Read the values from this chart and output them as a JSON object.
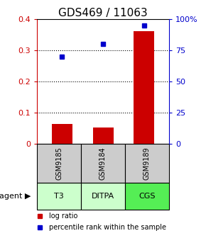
{
  "title": "GDS469 / 11063",
  "categories": [
    "GSM9185",
    "GSM9184",
    "GSM9189"
  ],
  "agents": [
    "T3",
    "DITPA",
    "CGS"
  ],
  "log_ratio": [
    0.063,
    0.052,
    0.36
  ],
  "percentile_rank": [
    0.7,
    0.8,
    0.95
  ],
  "bar_color": "#cc0000",
  "dot_color": "#0000cc",
  "left_ylim": [
    0,
    0.4
  ],
  "right_ylim": [
    0,
    1.0
  ],
  "left_yticks": [
    0,
    0.1,
    0.2,
    0.3,
    0.4
  ],
  "left_yticklabels": [
    "0",
    "0.1",
    "0.2",
    "0.3",
    "0.4"
  ],
  "right_yticks": [
    0,
    0.25,
    0.5,
    0.75,
    1.0
  ],
  "right_yticklabels": [
    "0",
    "25",
    "50",
    "75",
    "100%"
  ],
  "gsm_box_color": "#cccccc",
  "agent_box_color_light": "#ccffcc",
  "agent_box_color_bright": "#55ee55",
  "title_fontsize": 11,
  "tick_fontsize": 8,
  "agent_colors": [
    "#ccffcc",
    "#ccffcc",
    "#55ee55"
  ]
}
